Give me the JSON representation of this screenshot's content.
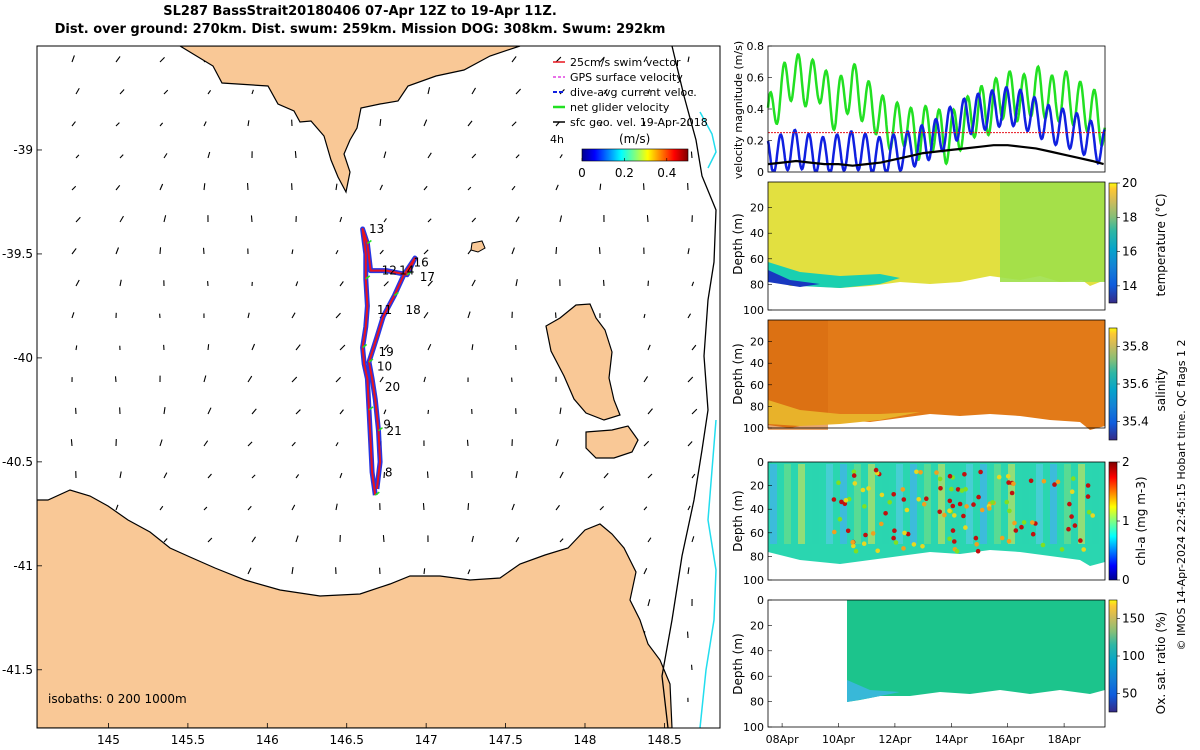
{
  "title": {
    "line1": "SL287 BassStrait20180406 07-Apr 12Z to 19-Apr 11Z.",
    "line2": "Dist. over ground: 270km. Dist. swum: 259km. Mission DOG: 308km. Swum: 292km"
  },
  "colors": {
    "land": "#f9c896",
    "track_red": "#e8141e",
    "track_blue": "#1020e0",
    "glider_green": "#22e022",
    "isobath_cyan": "#22ddee"
  },
  "chart_data": [
    {
      "type": "map",
      "x_ticks": [
        "145",
        "145.5",
        "146",
        "146.5",
        "147",
        "147.5",
        "148",
        "148.5"
      ],
      "x_tick_values": [
        145,
        145.5,
        146,
        146.5,
        147,
        147.5,
        148,
        148.5
      ],
      "y_ticks": [
        "-39",
        "-39.5",
        "-40",
        "-40.5",
        "-41",
        "-41.5"
      ],
      "y_tick_values": [
        -39,
        -39.5,
        -40,
        -40.5,
        -41,
        -41.5
      ],
      "xlim": [
        144.55,
        148.85
      ],
      "ylim": [
        -41.78,
        -38.5
      ],
      "legend": [
        {
          "label": "25cm/s swim vector",
          "color": "#e8141e"
        },
        {
          "label": "GPS surface velocity",
          "color": "#e040e0"
        },
        {
          "label": "dive-avg current veloc.",
          "color": "#1020e0"
        },
        {
          "label": "net glider velocity",
          "color": "#22e022"
        },
        {
          "label": "sfc geo. vel. 19-Apr-2018",
          "color": "#000000"
        }
      ],
      "legend_placement": "top-right",
      "timescale_label": "4h",
      "colorbar_label": "(m/s)",
      "colorbar_ticks": [
        "0",
        "0.2",
        "0.4"
      ],
      "colorbar_tick_values": [
        0,
        0.2,
        0.4
      ],
      "colorbar_range": [
        0,
        0.5
      ],
      "isobath_label": "isobaths: 0   200  1000m",
      "day_labels": [
        {
          "day": "13",
          "lon": 146.64,
          "lat": -39.4
        },
        {
          "day": "16",
          "lon": 146.92,
          "lat": -39.56
        },
        {
          "day": "12",
          "lon": 146.72,
          "lat": -39.6
        },
        {
          "day": "14",
          "lon": 146.83,
          "lat": -39.6
        },
        {
          "day": "17",
          "lon": 146.96,
          "lat": -39.63
        },
        {
          "day": "11",
          "lon": 146.69,
          "lat": -39.79
        },
        {
          "day": "18",
          "lon": 146.87,
          "lat": -39.79
        },
        {
          "day": "19",
          "lon": 146.7,
          "lat": -39.99
        },
        {
          "day": "10",
          "lon": 146.69,
          "lat": -40.06
        },
        {
          "day": "20",
          "lon": 146.74,
          "lat": -40.16
        },
        {
          "day": "9",
          "lon": 146.73,
          "lat": -40.34
        },
        {
          "day": "21",
          "lon": 146.75,
          "lat": -40.37
        },
        {
          "day": "8",
          "lon": 146.74,
          "lat": -40.57
        }
      ],
      "track": [
        [
          146.68,
          -40.66
        ],
        [
          146.66,
          -40.55
        ],
        [
          146.65,
          -40.4
        ],
        [
          146.64,
          -40.25
        ],
        [
          146.63,
          -40.1
        ],
        [
          146.61,
          -40.03
        ],
        [
          146.6,
          -39.95
        ],
        [
          146.62,
          -39.85
        ],
        [
          146.63,
          -39.75
        ],
        [
          146.62,
          -39.62
        ],
        [
          146.62,
          -39.5
        ],
        [
          146.6,
          -39.38
        ],
        [
          146.63,
          -39.45
        ],
        [
          146.65,
          -39.58
        ],
        [
          146.75,
          -39.58
        ],
        [
          146.88,
          -39.6
        ],
        [
          146.93,
          -39.52
        ],
        [
          146.86,
          -39.6
        ],
        [
          146.8,
          -39.7
        ],
        [
          146.73,
          -39.8
        ],
        [
          146.69,
          -39.9
        ],
        [
          146.64,
          -40.02
        ],
        [
          146.66,
          -40.1
        ],
        [
          146.68,
          -40.2
        ],
        [
          146.7,
          -40.35
        ],
        [
          146.71,
          -40.5
        ],
        [
          146.69,
          -40.63
        ]
      ]
    },
    {
      "type": "line",
      "ylabel": "velocity magnitude (m/s)",
      "ylim": [
        0,
        0.8
      ],
      "y_ticks": [
        "0",
        "0.2",
        "0.4",
        "0.6",
        "0.8"
      ],
      "xlim": [
        7.5,
        19.45
      ],
      "series_colors": {
        "gps_surface": "#22e022",
        "dive_avg": "#1020e0",
        "swim": "#e8141e",
        "sfc_geo": "#000000"
      },
      "green_series": {
        "t": [
          7.5,
          7.8,
          8.1,
          8.4,
          8.7,
          9.0,
          9.3,
          9.6,
          9.9,
          10.2,
          10.5,
          10.8,
          11.1,
          11.4,
          11.7,
          12.0,
          12.3,
          12.6,
          12.9,
          13.2,
          13.5,
          13.8,
          14.1,
          14.4,
          14.7,
          15.0,
          15.3,
          15.6,
          15.9,
          16.2,
          16.5,
          16.8,
          17.1,
          17.4,
          17.7,
          18.0,
          18.3,
          18.6,
          18.9,
          19.2,
          19.4
        ],
        "v": [
          0.32,
          0.45,
          0.55,
          0.62,
          0.58,
          0.55,
          0.6,
          0.48,
          0.4,
          0.5,
          0.55,
          0.48,
          0.42,
          0.38,
          0.3,
          0.28,
          0.32,
          0.25,
          0.22,
          0.3,
          0.26,
          0.2,
          0.25,
          0.3,
          0.35,
          0.4,
          0.38,
          0.45,
          0.5,
          0.48,
          0.46,
          0.5,
          0.52,
          0.48,
          0.45,
          0.5,
          0.45,
          0.42,
          0.4,
          0.35,
          0.3
        ],
        "amp": 0.15
      },
      "blue_series": {
        "t": [
          7.5,
          8.0,
          8.5,
          9.0,
          9.5,
          10.0,
          10.5,
          11.0,
          11.5,
          12.0,
          12.5,
          13.0,
          13.5,
          14.0,
          14.5,
          15.0,
          15.5,
          16.0,
          16.5,
          17.0,
          17.5,
          18.0,
          18.5,
          19.0,
          19.4
        ],
        "v": [
          0.1,
          0.12,
          0.15,
          0.12,
          0.1,
          0.12,
          0.14,
          0.12,
          0.1,
          0.12,
          0.14,
          0.18,
          0.22,
          0.3,
          0.35,
          0.38,
          0.4,
          0.42,
          0.4,
          0.35,
          0.3,
          0.28,
          0.25,
          0.2,
          0.15
        ],
        "amp": 0.12
      },
      "swim_level": 0.25,
      "black_series": {
        "t": [
          7.5,
          8.0,
          8.5,
          9.0,
          9.5,
          10.0,
          10.5,
          11.0,
          11.5,
          12.0,
          12.5,
          13.0,
          13.5,
          14.0,
          14.5,
          15.0,
          15.5,
          16.0,
          16.5,
          17.0,
          17.5,
          18.0,
          18.5,
          19.0,
          19.4
        ],
        "v": [
          0.05,
          0.06,
          0.07,
          0.06,
          0.05,
          0.05,
          0.04,
          0.05,
          0.06,
          0.08,
          0.1,
          0.12,
          0.13,
          0.14,
          0.15,
          0.16,
          0.17,
          0.17,
          0.16,
          0.15,
          0.13,
          0.11,
          0.09,
          0.07,
          0.05
        ]
      }
    },
    {
      "type": "heatmap",
      "ylabel": "Depth (m)",
      "colorbar_label": "temperature (°C)",
      "colorbar_ticks": [
        "20",
        "18",
        "16",
        "14"
      ],
      "colorbar_tick_values": [
        20,
        18,
        16,
        14
      ],
      "colorbar_range": [
        13,
        20
      ],
      "ylim": [
        100,
        0
      ],
      "y_ticks": [
        "20",
        "40",
        "60",
        "80",
        "100"
      ]
    },
    {
      "type": "heatmap",
      "ylabel": "Depth (m)",
      "colorbar_label": "salinity",
      "colorbar_ticks": [
        "35.8",
        "35.6",
        "35.4"
      ],
      "colorbar_tick_values": [
        35.8,
        35.6,
        35.4
      ],
      "colorbar_range": [
        35.3,
        35.9
      ],
      "ylim": [
        100,
        0
      ],
      "y_ticks": [
        "20",
        "40",
        "60",
        "80",
        "100"
      ]
    },
    {
      "type": "heatmap",
      "ylabel": "Depth (m)",
      "colorbar_label": "chl-a (mg m-3)",
      "colorbar_ticks": [
        "2",
        "1",
        "0"
      ],
      "colorbar_tick_values": [
        2,
        1,
        0
      ],
      "colorbar_range": [
        0,
        2
      ],
      "ylim": [
        100,
        0
      ],
      "y_ticks": [
        "0",
        "20",
        "40",
        "60",
        "80",
        "100"
      ]
    },
    {
      "type": "heatmap",
      "ylabel": "Depth (m)",
      "colorbar_label": "Ox. sat. ratio (%)",
      "colorbar_ticks": [
        "150",
        "100",
        "50"
      ],
      "colorbar_tick_values": [
        150,
        100,
        50
      ],
      "colorbar_range": [
        25,
        175
      ],
      "ylim": [
        100,
        0
      ],
      "y_ticks": [
        "0",
        "20",
        "40",
        "60",
        "80",
        "100"
      ],
      "x_ticks": [
        "08Apr",
        "10Apr",
        "12Apr",
        "14Apr",
        "16Apr",
        "18Apr"
      ],
      "x_tick_values": [
        8,
        10,
        12,
        14,
        16,
        18
      ],
      "xlim": [
        7.5,
        19.45
      ]
    }
  ],
  "footer": "© IMOS 14-Apr-2024 22:45:15 Hobart time. QC flags 1  2"
}
